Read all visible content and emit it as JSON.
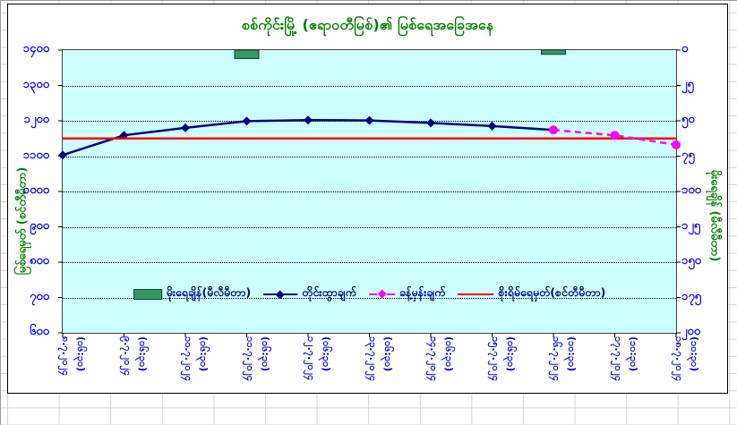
{
  "title": "စစ်ကိုင်းမြို့ (ဧရာဝတီမြစ်)၏ မြစ်ရေအခြေအနေ",
  "axes": {
    "left": {
      "title": "မြစ်ရေမှတ် (စင်တီမီတာ)",
      "ticks": [
        "၁၄၀၀",
        "၁၃၀၀",
        "၁၂၀၀",
        "၁၁၀၀",
        "၁၀၀၀",
        "၉၀၀",
        "၈၀၀",
        "၇၀၀",
        "၆၀၀"
      ]
    },
    "right": {
      "title": "မိုးရေချိန် (မီလီမီတာ)",
      "ticks": [
        "၀",
        "၂၅",
        "၅၀",
        "၇၅",
        "၁၀၀",
        "၁၂၅",
        "၁၅၀",
        "၁၇၅",
        "၂၀၀"
      ]
    },
    "x": {
      "labels": [
        {
          "date": "၈.၇.၂၀၂၄",
          "time": "(၀၆:၃၀)"
        },
        {
          "date": "၉.၇.၂၀၂၄",
          "time": "(၀၆:၃၀)"
        },
        {
          "date": "၁၀.၇.၂၀၂၄",
          "time": "(၀၆:၃၀)"
        },
        {
          "date": "၁၁.၇.၂၀၂၄",
          "time": "(၀၆:၃၀)"
        },
        {
          "date": "၁၂.၇.၂၀၂၄",
          "time": "(၀၆:၃၀)"
        },
        {
          "date": "၁၃.၇.၂၀၂၄",
          "time": "(၀၆:၃၀)"
        },
        {
          "date": "၁၄.၇.၂၀၂၄",
          "time": "(၀၆:၃၀)"
        },
        {
          "date": "၁၅.၇.၂၀၂၄",
          "time": "(၀၆:၃၀)"
        },
        {
          "date": "၁၆.၇.၂၀၂၄",
          "time": "(၁၀:၃၀)"
        },
        {
          "date": "၁၇.၇.၂၀၂၄",
          "time": "(၁၀:၃၀)"
        },
        {
          "date": "၁၈.၇.၂၀၂၄",
          "time": "(၁၀:၃၀)"
        }
      ]
    }
  },
  "legend": {
    "items": [
      {
        "label": "မိုးရေချိန်(မီလီမီတာ)",
        "swatch": "bar"
      },
      {
        "label": "တိုင်းထွာချက်",
        "swatch": "line-diamond"
      },
      {
        "label": "ခန့်မှန်းချက်",
        "swatch": "dash-diamond"
      },
      {
        "label": "စိုးရိမ်ရေမှတ်(စင်တီမီတာ)",
        "swatch": "red-line"
      }
    ]
  },
  "colors": {
    "title_green": "#008000",
    "axis_label_blue": "#0000ee",
    "observed_navy": "#000080",
    "forecast_magenta": "#ff00ff",
    "danger_red": "#ff0000",
    "rain_bar_green": "#339966",
    "plot_background": "#ccffff"
  },
  "chart_data": {
    "type": "line",
    "title": "Sagaing town (Ayeyarwady River) water level condition",
    "x": [
      "8.7.2024 (06:30)",
      "9.7.2024 (06:30)",
      "10.7.2024 (06:30)",
      "11.7.2024 (06:30)",
      "12.7.2024 (06:30)",
      "13.7.2024 (06:30)",
      "14.7.2024 (06:30)",
      "15.7.2024 (06:30)",
      "16.7.2024 (10:30)",
      "17.7.2024 (10:30)",
      "18.7.2024 (10:30)"
    ],
    "left_ylim": [
      600,
      1400
    ],
    "right_ylim": [
      0,
      200
    ],
    "right_axis_inverted_bars_from_top": true,
    "grid": true,
    "legend_position": "inside-bottom-center",
    "series": [
      {
        "role": "rain",
        "name": "မိုးရေချိန်(မီလီမီတာ)",
        "type": "bar",
        "axis": "right",
        "color": "#339966",
        "values": [
          null,
          null,
          null,
          6,
          null,
          null,
          null,
          null,
          3,
          null,
          null
        ]
      },
      {
        "role": "observed",
        "name": "တိုင်းထွာချက်",
        "type": "line",
        "marker": "diamond",
        "color": "#000080",
        "values": [
          1103,
          1159,
          1180,
          1199,
          1202,
          1201,
          1194,
          1185,
          1174,
          null,
          null
        ]
      },
      {
        "role": "forecast",
        "name": "ခန့်မှန်းချက်",
        "type": "line",
        "style": "dashed",
        "marker": "circle",
        "color": "#ff00ff",
        "values": [
          null,
          null,
          null,
          null,
          null,
          null,
          null,
          null,
          1174,
          1159,
          1132
        ]
      },
      {
        "role": "danger",
        "name": "စိုးရိမ်ရေမှတ်(စင်တီမီတာ)",
        "type": "hline",
        "color": "#ff0000",
        "value": 1150
      }
    ]
  }
}
